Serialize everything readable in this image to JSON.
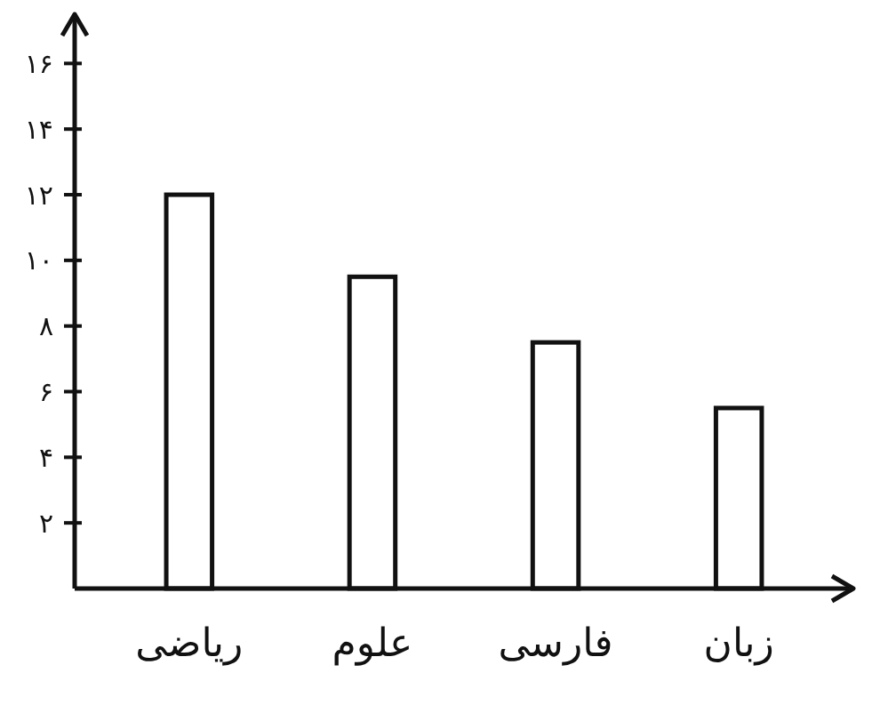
{
  "chart_data": {
    "type": "bar",
    "categories": [
      "ریاضی",
      "علوم",
      "فارسی",
      "زبان"
    ],
    "values": [
      12,
      9.5,
      7.5,
      5.5
    ],
    "color": "#ffffff",
    "ylim": [
      0,
      17.5
    ],
    "yticks": [
      {
        "value": 2,
        "label": "۲"
      },
      {
        "value": 4,
        "label": "۴"
      },
      {
        "value": 6,
        "label": "۶"
      },
      {
        "value": 8,
        "label": "۸"
      },
      {
        "value": 10,
        "label": "۱۰"
      },
      {
        "value": 12,
        "label": "۱۲"
      },
      {
        "value": 14,
        "label": "۱۴"
      },
      {
        "value": 16,
        "label": "۱۶"
      }
    ],
    "grid": false
  }
}
